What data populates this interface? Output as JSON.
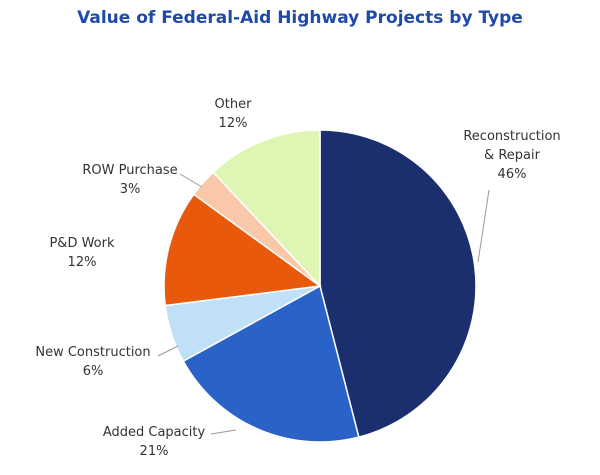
{
  "chart_data": {
    "type": "pie",
    "title": "Value of Federal-Aid Highway Projects by Type",
    "start": "top",
    "direction": "clockwise",
    "slices": [
      {
        "label": [
          "Reconstruction",
          "& Repair"
        ],
        "value": 46,
        "pct_label": "46%",
        "color": "#1b2f6e"
      },
      {
        "label": [
          "Added Capacity"
        ],
        "value": 21,
        "pct_label": "21%",
        "color": "#2b62c8"
      },
      {
        "label": [
          "New Construction"
        ],
        "value": 6,
        "pct_label": "6%",
        "color": "#c0e0f8"
      },
      {
        "label": [
          "P&D Work"
        ],
        "value": 12,
        "pct_label": "12%",
        "color": "#e9590c"
      },
      {
        "label": [
          "ROW Purchase"
        ],
        "value": 3,
        "pct_label": "3%",
        "color": "#f8c8a8"
      },
      {
        "label": [
          "Other"
        ],
        "value": 12,
        "pct_label": "12%",
        "color": "#def5b4"
      }
    ]
  }
}
